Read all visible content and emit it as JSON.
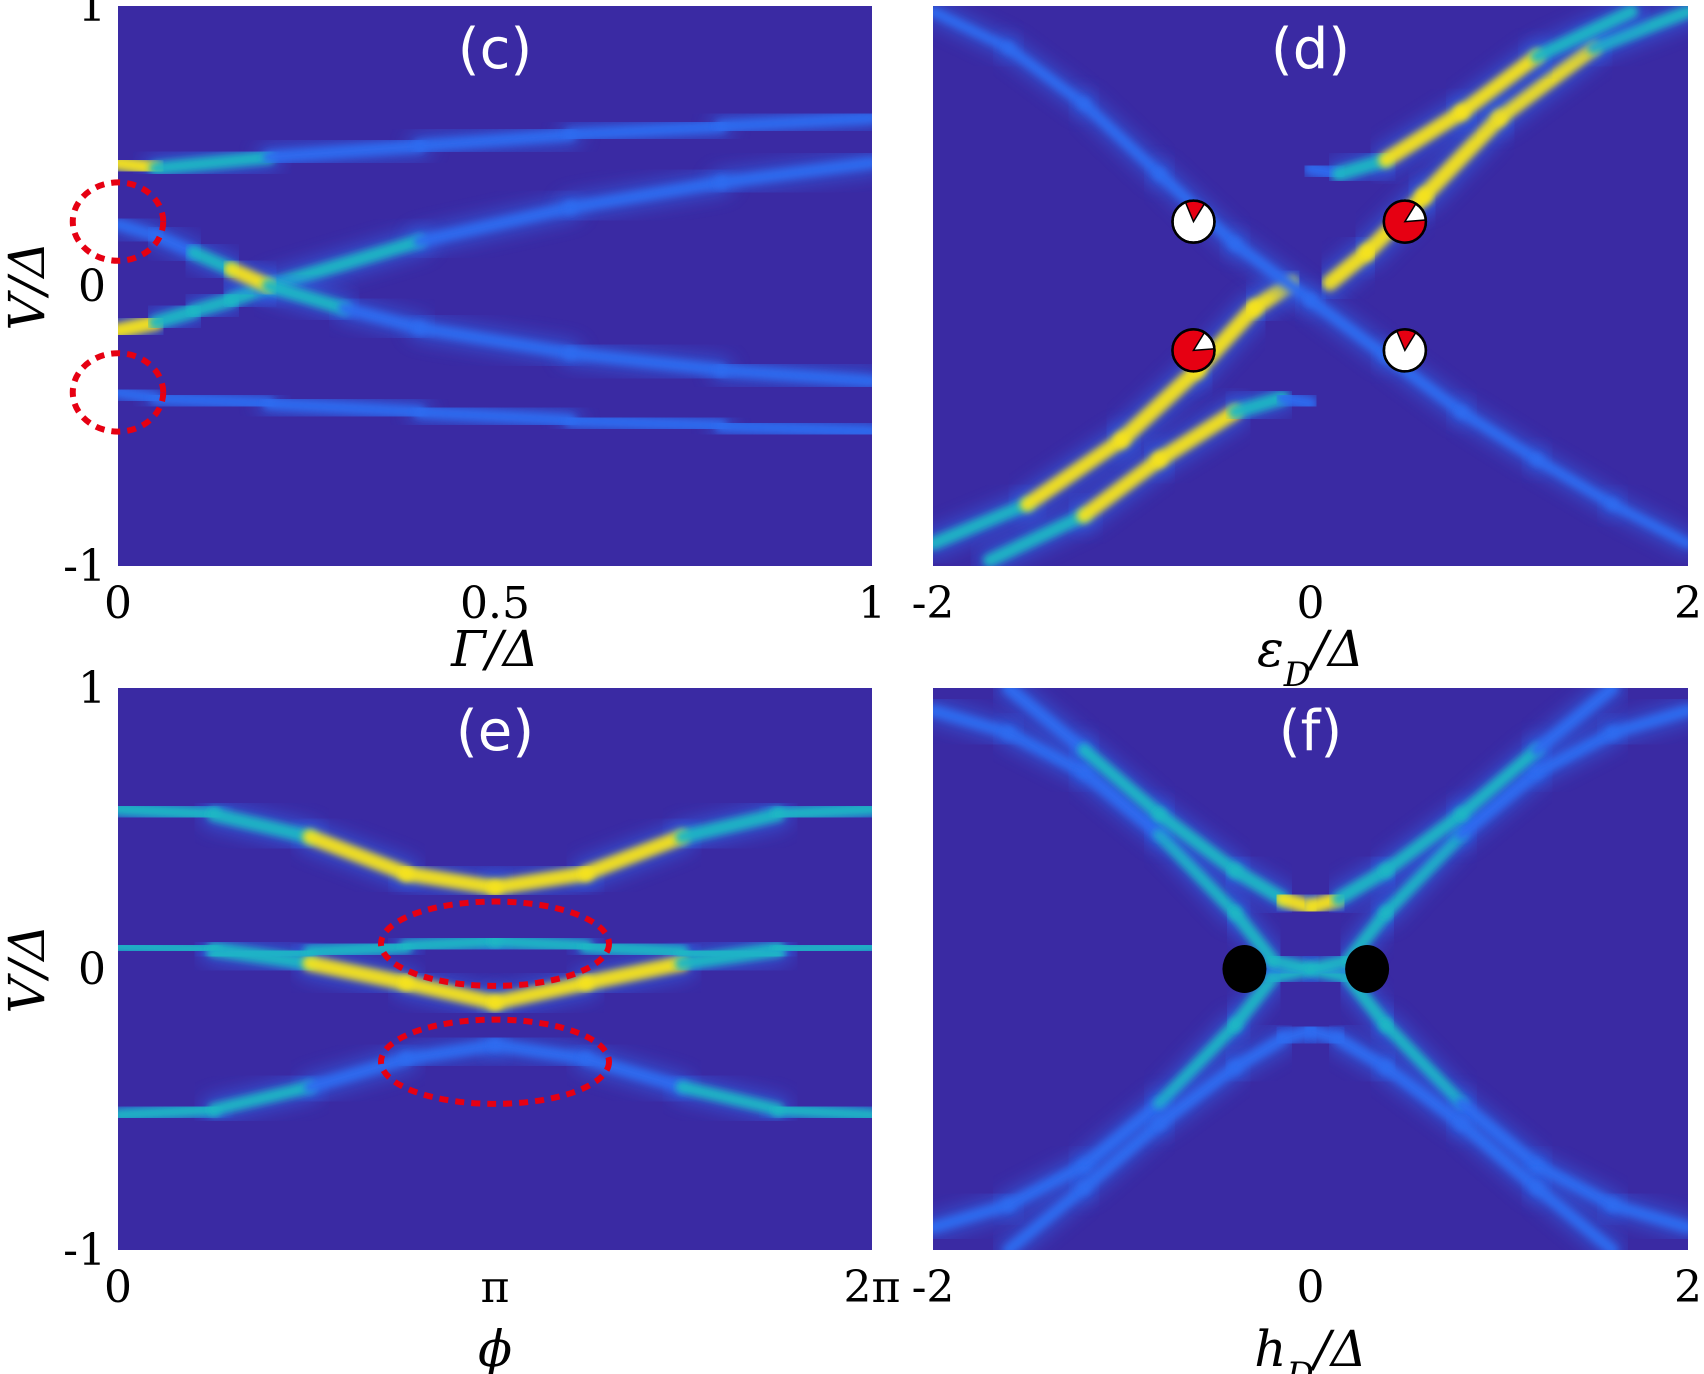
{
  "colors": {
    "background": "#3a2aa3",
    "peak_low": "#2f6cf0",
    "peak_mid": "#1fb7c4",
    "peak_high": "#f6e31c",
    "circle_marker": "#e60012",
    "dot_marker": "#000000"
  },
  "chart_data": [
    {
      "type": "heatmap",
      "title": "(c)",
      "xlabel": "Γ/Δ",
      "ylabel": "V/Δ",
      "xlim": [
        0,
        1
      ],
      "ylim": [
        -1,
        1
      ],
      "xticks": [
        {
          "v": 0,
          "label": "0"
        },
        {
          "v": 0.5,
          "label": "0.5"
        },
        {
          "v": 1,
          "label": "1"
        }
      ],
      "yticks": [
        {
          "v": 1,
          "label": "1"
        },
        {
          "v": 0,
          "label": "0"
        },
        {
          "v": -1,
          "label": "-1"
        }
      ],
      "bands": [
        {
          "x": [
            0,
            0.05,
            0.2,
            0.4,
            0.6,
            0.8,
            1.0
          ],
          "y": [
            0.44,
            0.42,
            0.46,
            0.5,
            0.54,
            0.57,
            0.6
          ],
          "intensity": [
            1.0,
            0.8,
            0.55,
            0.5,
            0.45,
            0.45,
            0.45
          ]
        },
        {
          "x": [
            0,
            0.05,
            0.1,
            0.15,
            0.2,
            0.4,
            0.6,
            0.8,
            1.0
          ],
          "y": [
            -0.16,
            -0.13,
            -0.09,
            -0.05,
            0.0,
            0.16,
            0.28,
            0.37,
            0.44
          ],
          "intensity": [
            1.0,
            0.85,
            0.7,
            0.75,
            0.9,
            0.5,
            0.45,
            0.45,
            0.45
          ]
        },
        {
          "x": [
            0,
            0.05,
            0.1,
            0.15,
            0.2,
            0.3,
            0.4,
            0.6,
            0.8,
            1.0
          ],
          "y": [
            0.22,
            0.18,
            0.12,
            0.06,
            0.0,
            -0.08,
            -0.15,
            -0.24,
            -0.3,
            -0.34
          ],
          "intensity": [
            0.3,
            0.45,
            0.6,
            0.8,
            0.9,
            0.5,
            0.45,
            0.45,
            0.45,
            0.45
          ]
        },
        {
          "x": [
            0,
            0.05,
            0.2,
            0.4,
            0.6,
            0.8,
            1.0
          ],
          "y": [
            -0.38,
            -0.4,
            -0.42,
            -0.45,
            -0.48,
            -0.5,
            -0.52
          ],
          "intensity": [
            0.3,
            0.45,
            0.45,
            0.45,
            0.45,
            0.45,
            0.45
          ]
        }
      ],
      "markers": [
        {
          "kind": "dashed-ellipse",
          "x": 0.0,
          "y": 0.23,
          "rx": 0.06,
          "ry": 0.14
        },
        {
          "kind": "dashed-ellipse",
          "x": 0.0,
          "y": -0.38,
          "rx": 0.06,
          "ry": 0.14
        }
      ]
    },
    {
      "type": "heatmap",
      "title": "(d)",
      "xlabel": "ε_D/Δ",
      "ylabel": "",
      "xlim": [
        -2,
        2
      ],
      "ylim": [
        -1,
        1
      ],
      "xticks": [
        {
          "v": -2,
          "label": "-2"
        },
        {
          "v": 0,
          "label": "0"
        },
        {
          "v": 2,
          "label": "2"
        }
      ],
      "yticks": [],
      "bands": [
        {
          "x": [
            -2.0,
            -1.5,
            -1.0,
            -0.6,
            -0.3,
            -0.1,
            0.1,
            0.3,
            0.6,
            1.0,
            1.5,
            2.0
          ],
          "y": [
            -0.92,
            -0.78,
            -0.55,
            -0.3,
            -0.08,
            0.01,
            0.01,
            0.12,
            0.32,
            0.6,
            0.85,
            0.98
          ],
          "intensity": [
            0.5,
            0.75,
            0.95,
            1.0,
            0.95,
            1.0,
            1.0,
            0.95,
            1.0,
            0.95,
            0.75,
            0.5
          ]
        },
        {
          "x": [
            -1.7,
            -1.2,
            -0.8,
            -0.4,
            -0.15,
            0.0
          ],
          "y": [
            -0.98,
            -0.82,
            -0.62,
            -0.45,
            -0.4,
            -0.42
          ],
          "intensity": [
            0.5,
            0.8,
            0.9,
            0.9,
            0.6,
            0.4
          ]
        },
        {
          "x": [
            0.0,
            0.15,
            0.4,
            0.8,
            1.2,
            1.7
          ],
          "y": [
            0.42,
            0.4,
            0.45,
            0.62,
            0.82,
            0.98
          ],
          "intensity": [
            0.4,
            0.6,
            0.9,
            0.9,
            0.8,
            0.5
          ]
        },
        {
          "x": [
            -2.0,
            -1.6,
            -1.2,
            -0.8,
            -0.4,
            0.0,
            0.4,
            0.8,
            1.2,
            1.6,
            2.0
          ],
          "y": [
            0.98,
            0.85,
            0.65,
            0.4,
            0.15,
            -0.05,
            -0.25,
            -0.45,
            -0.62,
            -0.78,
            -0.92
          ],
          "intensity": [
            0.2,
            0.25,
            0.3,
            0.35,
            0.4,
            0.4,
            0.4,
            0.35,
            0.3,
            0.25,
            0.2
          ]
        }
      ],
      "markers": [
        {
          "kind": "pie",
          "x": -0.62,
          "y": 0.23,
          "fraction": 0.15
        },
        {
          "kind": "pie",
          "x": 0.5,
          "y": 0.23,
          "fraction": 0.85
        },
        {
          "kind": "pie",
          "x": -0.62,
          "y": -0.23,
          "fraction": 0.85
        },
        {
          "kind": "pie",
          "x": 0.5,
          "y": -0.23,
          "fraction": 0.15
        }
      ]
    },
    {
      "type": "heatmap",
      "title": "(e)",
      "xlabel": "ϕ",
      "ylabel": "V/Δ",
      "xlim": [
        0,
        6.2832
      ],
      "ylim": [
        -1,
        1
      ],
      "xticks": [
        {
          "v": 0,
          "label": "0"
        },
        {
          "v": 3.1416,
          "label": "π"
        },
        {
          "v": 6.2832,
          "label": "2π"
        }
      ],
      "yticks": [
        {
          "v": 1,
          "label": "1"
        },
        {
          "v": 0,
          "label": "0"
        },
        {
          "v": -1,
          "label": "-1"
        }
      ],
      "bands": [
        {
          "x": [
            0,
            0.8,
            1.6,
            2.4,
            3.1416,
            3.9,
            4.7,
            5.5,
            6.2832
          ],
          "y": [
            0.57,
            0.55,
            0.47,
            0.34,
            0.29,
            0.34,
            0.47,
            0.55,
            0.57
          ],
          "intensity": [
            0.7,
            0.7,
            0.8,
            0.9,
            0.85,
            0.9,
            0.8,
            0.7,
            0.7
          ]
        },
        {
          "x": [
            0,
            0.8,
            1.6,
            2.4,
            3.1416,
            3.9,
            4.7,
            5.5,
            6.2832
          ],
          "y": [
            0.08,
            0.07,
            0.02,
            -0.05,
            -0.12,
            -0.05,
            0.02,
            0.07,
            0.08
          ],
          "intensity": [
            0.6,
            0.7,
            0.95,
            0.85,
            0.85,
            0.85,
            0.95,
            0.7,
            0.6
          ]
        },
        {
          "x": [
            0,
            0.8,
            1.6,
            2.4,
            3.1416,
            3.9,
            4.7,
            5.5,
            6.2832
          ],
          "y": [
            0.05,
            0.05,
            0.06,
            0.08,
            0.1,
            0.08,
            0.06,
            0.05,
            0.05
          ],
          "intensity": [
            0.4,
            0.5,
            0.7,
            0.75,
            0.7,
            0.75,
            0.7,
            0.5,
            0.4
          ]
        },
        {
          "x": [
            0,
            0.8,
            1.6,
            2.4,
            3.1416,
            3.9,
            4.7,
            5.5,
            6.2832
          ],
          "y": [
            -0.52,
            -0.5,
            -0.42,
            -0.32,
            -0.27,
            -0.32,
            -0.42,
            -0.5,
            -0.52
          ],
          "intensity": [
            0.6,
            0.6,
            0.55,
            0.5,
            0.45,
            0.5,
            0.55,
            0.6,
            0.6
          ]
        }
      ],
      "markers": [
        {
          "kind": "dashed-ellipse",
          "x": 3.1416,
          "y": 0.09,
          "rx": 0.95,
          "ry": 0.15
        },
        {
          "kind": "dashed-ellipse",
          "x": 3.1416,
          "y": -0.33,
          "rx": 0.95,
          "ry": 0.15
        }
      ]
    },
    {
      "type": "heatmap",
      "title": "(f)",
      "xlabel": "h_D/Δ",
      "ylabel": "",
      "xlim": [
        -2,
        2
      ],
      "ylim": [
        -1,
        1
      ],
      "xticks": [
        {
          "v": -2,
          "label": "-2"
        },
        {
          "v": 0,
          "label": "0"
        },
        {
          "v": 2,
          "label": "2"
        }
      ],
      "yticks": [],
      "bands": [
        {
          "x": [
            -2.0,
            -1.6,
            -1.2,
            -0.8,
            -0.4,
            -0.2,
            0.0,
            0.2,
            0.4,
            0.8,
            1.2,
            1.6,
            2.0
          ],
          "y": [
            -0.92,
            -0.84,
            -0.7,
            -0.48,
            -0.2,
            -0.03,
            0.0,
            -0.03,
            -0.2,
            -0.48,
            -0.7,
            -0.84,
            -0.92
          ],
          "intensity": [
            0.4,
            0.45,
            0.5,
            0.55,
            0.6,
            0.7,
            0.55,
            0.7,
            0.6,
            0.55,
            0.5,
            0.45,
            0.4
          ]
        },
        {
          "x": [
            -2.0,
            -1.6,
            -1.2,
            -0.8,
            -0.4,
            -0.2,
            0.0,
            0.2,
            0.4,
            0.8,
            1.2,
            1.6,
            2.0
          ],
          "y": [
            0.92,
            0.84,
            0.7,
            0.48,
            0.2,
            0.03,
            0.0,
            0.03,
            0.2,
            0.48,
            0.7,
            0.84,
            0.92
          ],
          "intensity": [
            0.4,
            0.45,
            0.5,
            0.55,
            0.6,
            0.7,
            0.55,
            0.7,
            0.6,
            0.55,
            0.5,
            0.45,
            0.4
          ]
        },
        {
          "x": [
            -1.6,
            -1.2,
            -0.8,
            -0.4,
            -0.15,
            0.0
          ],
          "y": [
            1.0,
            0.78,
            0.55,
            0.35,
            0.25,
            0.22
          ],
          "intensity": [
            0.5,
            0.55,
            0.6,
            0.7,
            0.8,
            1.0
          ]
        },
        {
          "x": [
            0.0,
            0.15,
            0.4,
            0.8,
            1.2,
            1.6
          ],
          "y": [
            0.22,
            0.25,
            0.35,
            0.55,
            0.78,
            1.0
          ],
          "intensity": [
            1.0,
            0.8,
            0.7,
            0.6,
            0.55,
            0.5
          ]
        },
        {
          "x": [
            -1.6,
            -1.2,
            -0.8,
            -0.4,
            -0.15,
            0.0
          ],
          "y": [
            -1.0,
            -0.78,
            -0.55,
            -0.35,
            -0.25,
            -0.22
          ],
          "intensity": [
            0.35,
            0.4,
            0.45,
            0.5,
            0.5,
            0.5
          ]
        },
        {
          "x": [
            0.0,
            0.15,
            0.4,
            0.8,
            1.2,
            1.6
          ],
          "y": [
            -0.22,
            -0.25,
            -0.35,
            -0.55,
            -0.78,
            -1.0
          ],
          "intensity": [
            0.5,
            0.5,
            0.5,
            0.45,
            0.4,
            0.35
          ]
        }
      ],
      "markers": [
        {
          "kind": "dot",
          "x": -0.35,
          "y": 0.0
        },
        {
          "kind": "dot",
          "x": 0.3,
          "y": 0.0
        }
      ]
    }
  ]
}
